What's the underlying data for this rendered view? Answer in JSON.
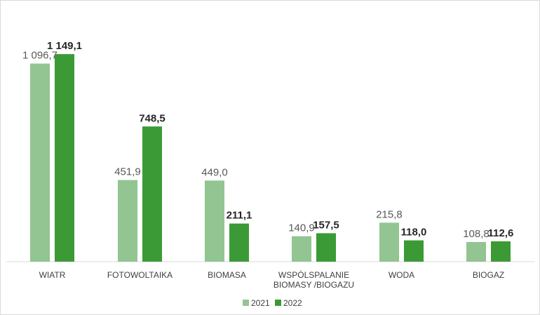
{
  "chart_data": {
    "type": "bar",
    "categories": [
      [
        "WIATR"
      ],
      [
        "FOTOWOLTAIKA"
      ],
      [
        "BIOMASA"
      ],
      [
        "WSPÓLSPALANIE",
        "BIOMASY /BIOGAZU"
      ],
      [
        "WODA"
      ],
      [
        "BIOGAZ"
      ]
    ],
    "series": [
      {
        "name": "2021",
        "color": "#92c591",
        "values": [
          1096.7,
          451.9,
          449.0,
          140.9,
          215.8,
          108.8
        ],
        "labels": [
          "1 096,7",
          "451,9",
          "449,0",
          "140,9",
          "215,8",
          "108,8"
        ]
      },
      {
        "name": "2022",
        "color": "#3b9a36",
        "values": [
          1149.1,
          748.5,
          211.1,
          157.5,
          118.0,
          112.6
        ],
        "labels": [
          "1 149,1",
          "748,5",
          "211,1",
          "157,5",
          "118,0",
          "112,6"
        ]
      }
    ],
    "ylim": [
      0,
      1200
    ],
    "grid": false,
    "legend": "bottom"
  }
}
